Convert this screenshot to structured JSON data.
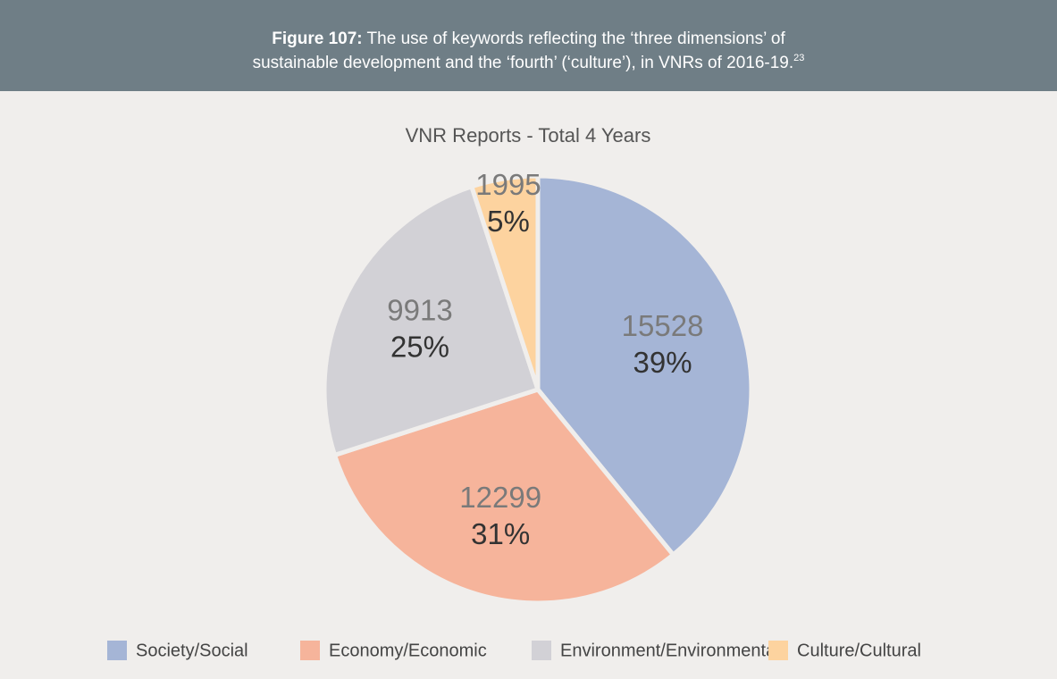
{
  "figure": {
    "label": "Figure 107:",
    "caption_lines": [
      "The use of keywords reflecting the ‘three dimensions’ of",
      "sustainable development and the ‘fourth’ (‘culture’), in VNRs of 2016-19."
    ],
    "footnote": "23"
  },
  "chart_data": {
    "type": "pie",
    "title": "VNR Reports - Total 4 Years",
    "categories": [
      "Society/Social",
      "Economy/Economic",
      "Environment/Environmental",
      "Culture/Cultural"
    ],
    "values": [
      15528,
      12299,
      9913,
      1995
    ],
    "percent_labels": [
      "39%",
      "31%",
      "25%",
      "5%"
    ],
    "colors": [
      "#a5b5d6",
      "#f6b49b",
      "#d2d1d6",
      "#fdd39f"
    ],
    "legend": "bottom"
  }
}
